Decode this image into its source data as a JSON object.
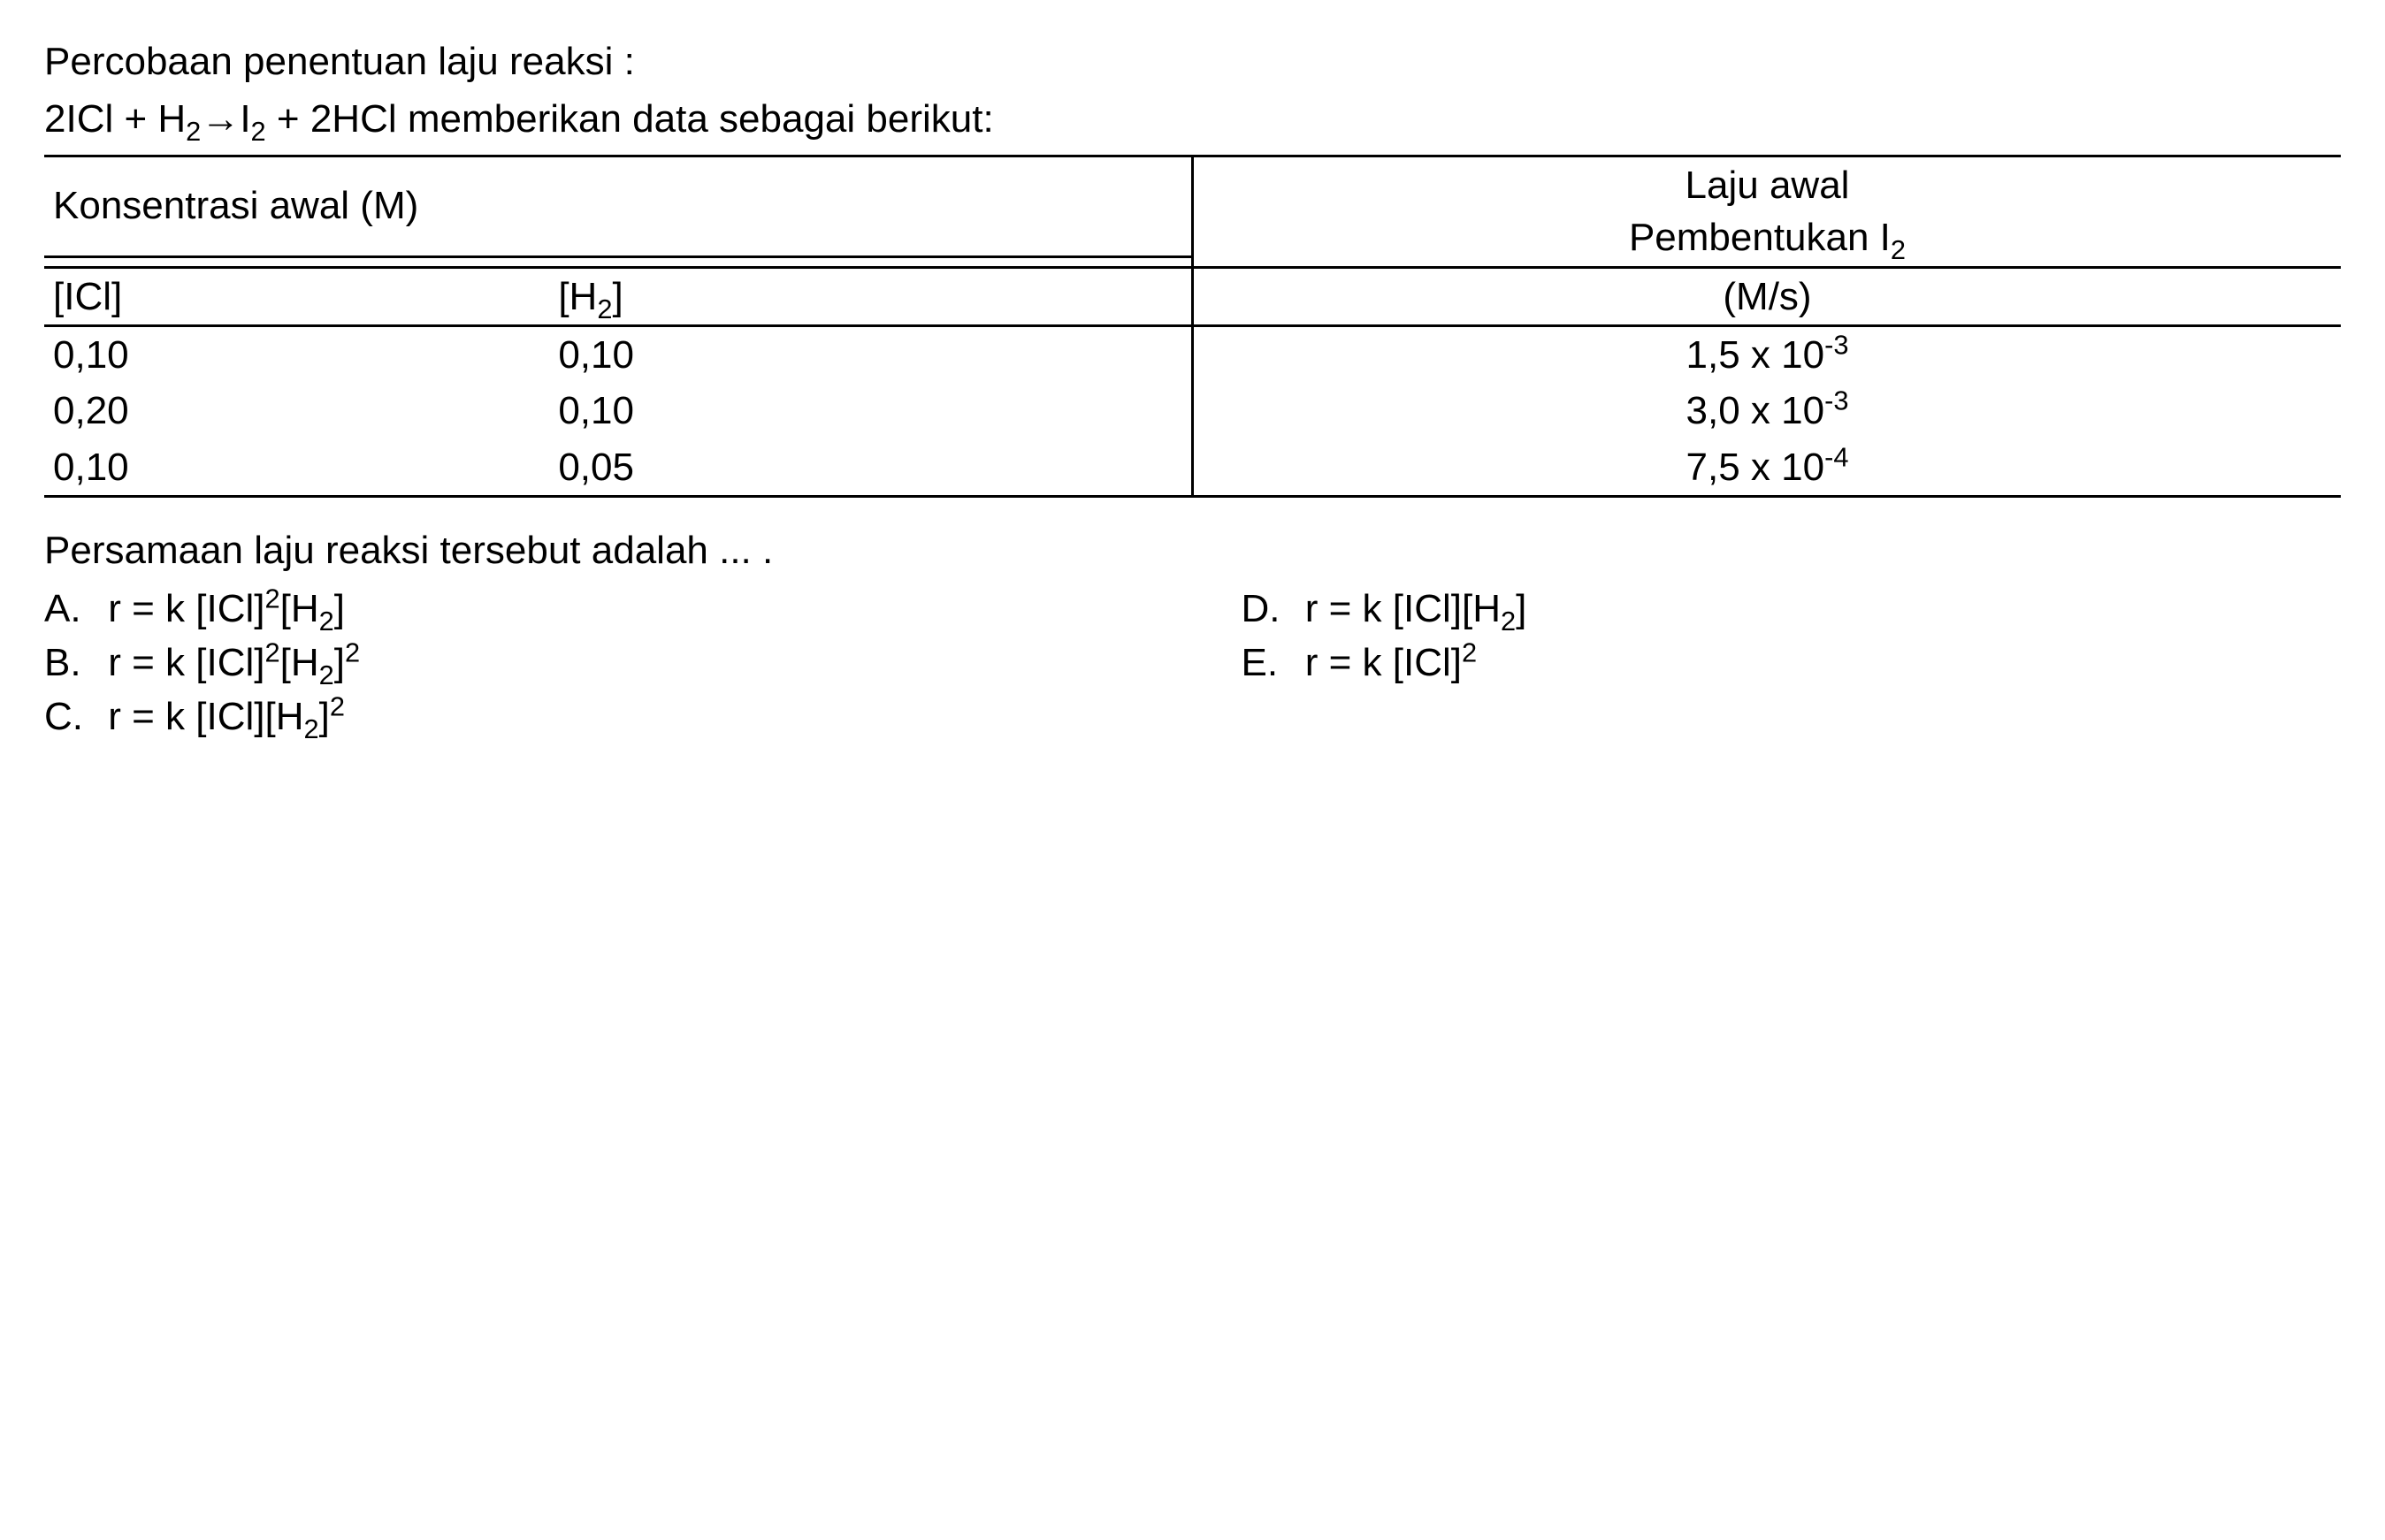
{
  "intro": "Percobaan penentuan laju reaksi :",
  "eq": {
    "lhs1": "2ICl + H",
    "sub1": "2",
    "arrow": " →",
    "rhs1": "I",
    "sub2": "2",
    "rhs2": " + 2HCl memberikan data sebagai berikut:"
  },
  "table": {
    "header_conc": "Konsentrasi awal (M)",
    "header_rate1": "Laju awal",
    "header_rate2_a": "Pembentukan I",
    "header_rate2_sub": "2",
    "col1": "[ICl]",
    "col2_a": "[H",
    "col2_sub": "2",
    "col2_b": "]",
    "col3": "(M/s)",
    "rows": [
      {
        "icl": "0,10",
        "h2": "0,10",
        "rate_a": "1,5 x 10",
        "rate_exp": "-3"
      },
      {
        "icl": "0,20",
        "h2": "0,10",
        "rate_a": "3,0 x 10",
        "rate_exp": "-3"
      },
      {
        "icl": "0,10",
        "h2": "0,05",
        "rate_a": "7,5 x 10",
        "rate_exp": "-4"
      }
    ]
  },
  "question": "Persamaan laju reaksi tersebut adalah ... .",
  "options": {
    "A": {
      "letter": "A.",
      "pre": "r = k [ICl]",
      "sup1": "2",
      "mid": "[H",
      "sub": "2",
      "post": "]",
      "sup2": ""
    },
    "B": {
      "letter": "B.",
      "pre": "r = k [ICl]",
      "sup1": "2",
      "mid": "[H",
      "sub": "2",
      "post": "]",
      "sup2": "2"
    },
    "C": {
      "letter": "C.",
      "pre": "r = k [ICl]",
      "sup1": "",
      "mid": "[H",
      "sub": "2",
      "post": "]",
      "sup2": "2"
    },
    "D": {
      "letter": "D.",
      "pre": "r = k [ICl]",
      "sup1": "",
      "mid": "[H",
      "sub": "2",
      "post": "]",
      "sup2": ""
    },
    "E": {
      "letter": "E.",
      "pre": "r = k [ICl]",
      "sup1": "2",
      "mid": "",
      "sub": "",
      "post": "",
      "sup2": ""
    }
  },
  "colors": {
    "text": "#000000",
    "background": "#ffffff",
    "border": "#000000"
  },
  "fontsize_pt": 33
}
